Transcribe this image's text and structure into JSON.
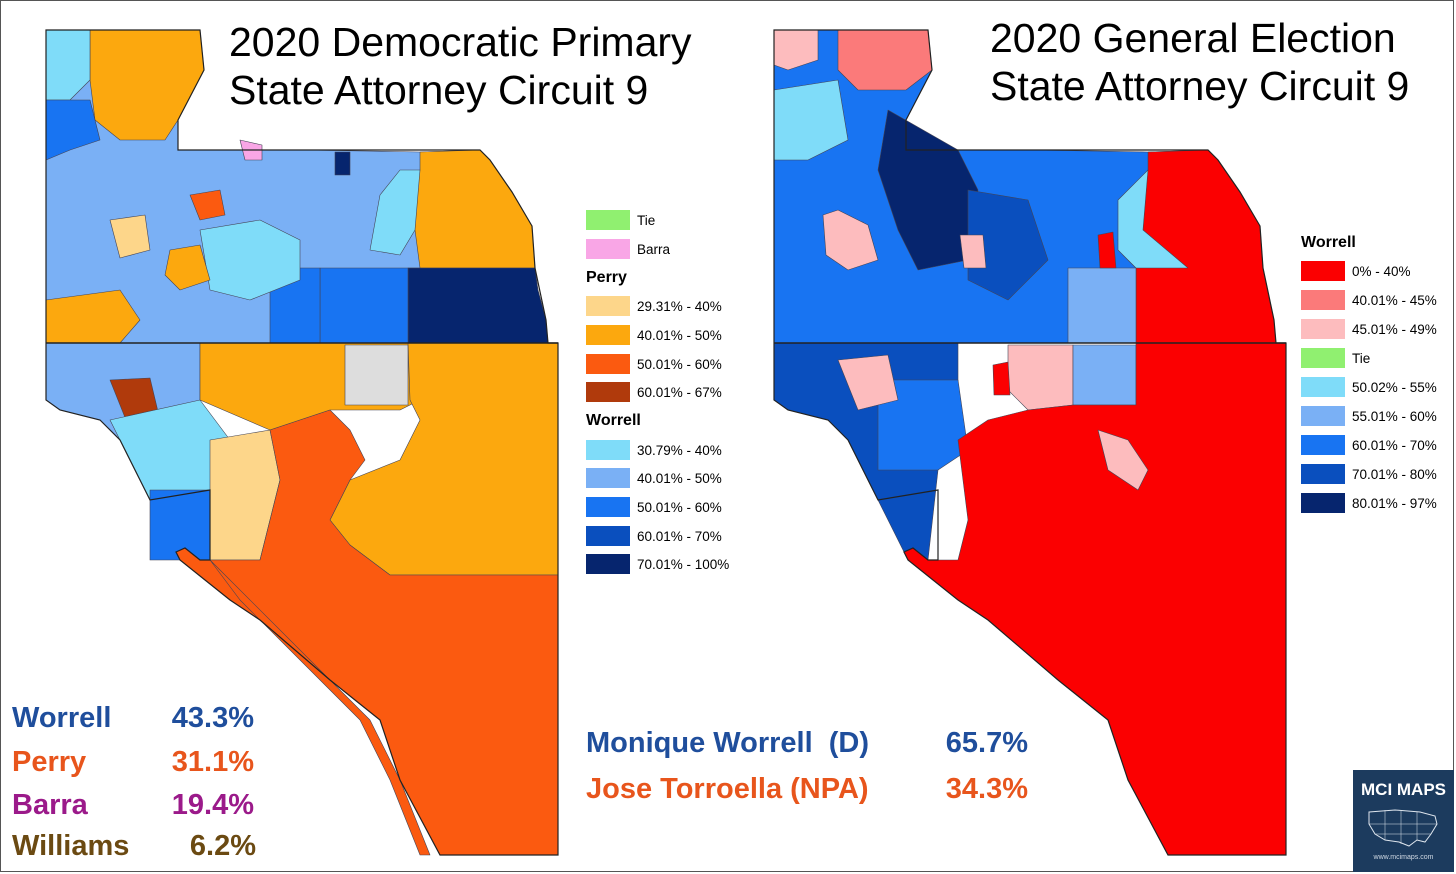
{
  "left_panel": {
    "title_line1": "2020 Democratic Primary",
    "title_line2": "State Attorney Circuit 9",
    "legend": {
      "tie_label": "Tie",
      "barra_label": "Barra",
      "perry_heading": "Perry",
      "perry_bins": [
        "29.31% - 40%",
        "40.01% - 50%",
        "50.01% - 60%",
        "60.01% - 67%"
      ],
      "worrell_heading": "Worrell",
      "worrell_bins": [
        "30.79% - 40%",
        "40.01% - 50%",
        "50.01% - 60%",
        "60.01% - 70%",
        "70.01% - 100%"
      ]
    },
    "results": [
      {
        "name": "Worrell",
        "pct": "43.3%",
        "color": "#1f4e9c"
      },
      {
        "name": "Perry",
        "pct": "31.1%",
        "color": "#e8551c"
      },
      {
        "name": "Barra",
        "pct": "19.4%",
        "color": "#9b1a8a"
      },
      {
        "name": "Williams",
        "pct": "6.2%",
        "color": "#6b4a12"
      }
    ]
  },
  "right_panel": {
    "title_line1": "2020 General Election",
    "title_line2": "State Attorney Circuit 9",
    "legend": {
      "worrell_heading": "Worrell",
      "bins": [
        "0% - 40%",
        "40.01% - 45%",
        "45.01% - 49%",
        "Tie",
        "50.02% - 55%",
        "55.01% - 60%",
        "60.01% - 70%",
        "70.01% - 80%",
        "80.01% - 97%"
      ]
    },
    "results": [
      {
        "name": "Monique Worrell  (D)",
        "pct": "65.7%",
        "color": "#1f4e9c"
      },
      {
        "name": "Jose Torroella (NPA)",
        "pct": "34.3%",
        "color": "#e8551c"
      }
    ]
  },
  "badge": {
    "title": "MCI MAPS",
    "url": "www.mcimaps.com"
  },
  "colors": {
    "tie": "#90f070",
    "barra": "#f9a6e6",
    "perry": [
      "#fdd68a",
      "#fca80e",
      "#fb5a10",
      "#b03a0c"
    ],
    "worrell_primary": [
      "#7fdcf9",
      "#7ab0f5",
      "#1874f2",
      "#0a4fbe",
      "#06256e"
    ],
    "general": [
      "#fb0001",
      "#fb7a7a",
      "#fdbcbe",
      "#90f070",
      "#7fdcf9",
      "#7ab0f5",
      "#1874f2",
      "#0a4fbe",
      "#06256e"
    ]
  }
}
